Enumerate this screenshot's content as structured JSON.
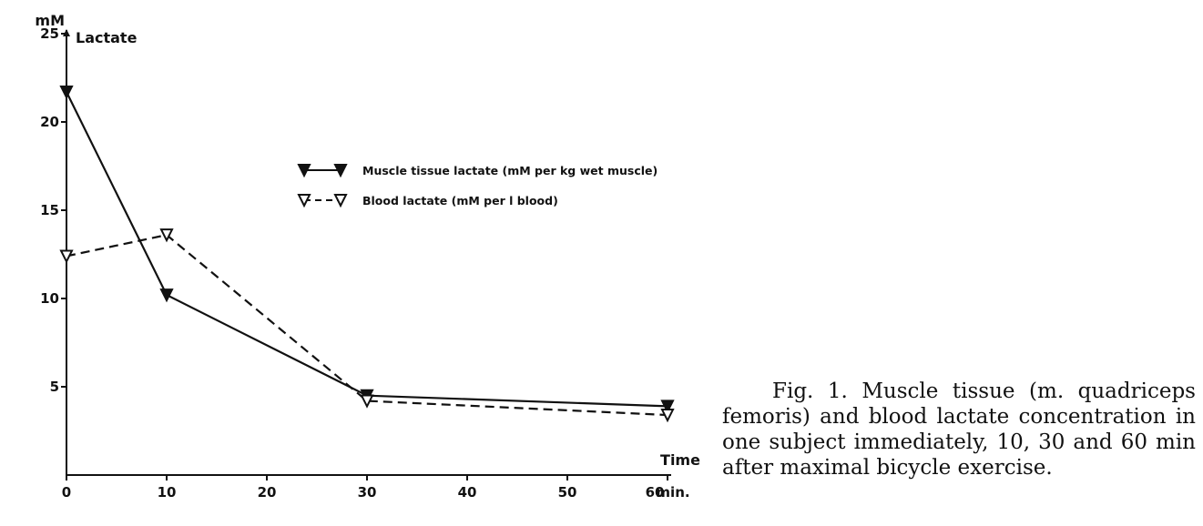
{
  "caption": "Fig. 1. Muscle tissue (m. quadriceps femoris) and blood lactate concentration in one subject immediately, 10, 30 and 60 min after maximal bicycle exercise.",
  "chart_data": {
    "type": "line",
    "y_unit_label": "mM",
    "ylabel": "Lactate",
    "xlabel": "Time",
    "x_unit": "min.",
    "xlim": [
      0,
      60
    ],
    "ylim": [
      0,
      25
    ],
    "x_ticks": [
      0,
      10,
      20,
      30,
      40,
      50,
      60
    ],
    "y_ticks": [
      5,
      10,
      15,
      20,
      25
    ],
    "grid": false,
    "legend_position": "top-center",
    "series": [
      {
        "name": "Muscle tissue lactate (mM per kg wet muscle)",
        "line_style": "solid",
        "marker": "filled-triangle-down",
        "x": [
          0,
          10,
          30,
          60
        ],
        "y": [
          21.7,
          10.2,
          4.5,
          3.9
        ]
      },
      {
        "name": "Blood lactate (mM per l blood)",
        "line_style": "dashed",
        "marker": "open-triangle-down",
        "x": [
          0,
          10,
          30,
          60
        ],
        "y": [
          12.4,
          13.6,
          4.2,
          3.4
        ]
      }
    ]
  }
}
